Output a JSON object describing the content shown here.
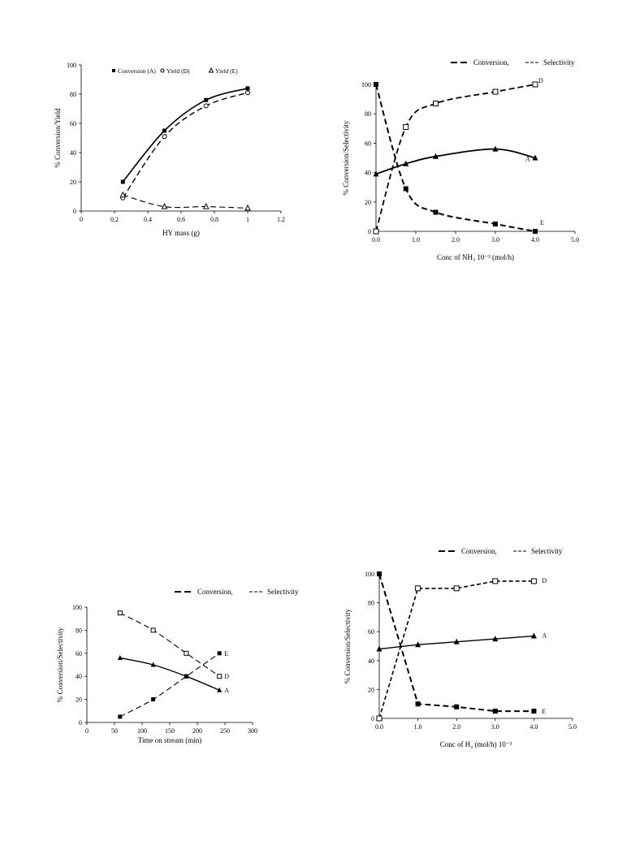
{
  "chart_data": [
    {
      "type": "line",
      "xlabel": "HY mass (g)",
      "ylabel": "% Conversion/Yield",
      "xlim": [
        0,
        1.2
      ],
      "ylim": [
        0,
        100
      ],
      "xticks": [
        "0",
        "0.2",
        "0.4",
        "0.6",
        "0.8",
        "1",
        "1.2"
      ],
      "yticks": [
        "0",
        "20",
        "40",
        "60",
        "80",
        "100"
      ],
      "legend_position": "top-right",
      "series": [
        {
          "name": "Conversion (A)",
          "marker": "filled-square",
          "line": "solid",
          "x": [
            0.25,
            0.5,
            0.75,
            1.0
          ],
          "y": [
            20,
            55,
            76,
            84
          ]
        },
        {
          "name": "Yield (D)",
          "marker": "open-circle",
          "line": "dashed",
          "x": [
            0.25,
            0.5,
            0.75,
            1.0
          ],
          "y": [
            9,
            51,
            72,
            81
          ]
        },
        {
          "name": "Yield (E)",
          "marker": "open-triangle",
          "line": "dashed",
          "x": [
            0.25,
            0.5,
            0.75,
            1.0
          ],
          "y": [
            11,
            3,
            3,
            2
          ]
        }
      ]
    },
    {
      "type": "line",
      "xlabel": "Conc of NH₃ 10⁻³ (mol/h)",
      "ylabel": "% Conversion/Selectivity",
      "xlim": [
        0,
        5
      ],
      "ylim": [
        0,
        100
      ],
      "xticks": [
        "0.0",
        "1.0",
        "2.0",
        "3.0",
        "4.0",
        "5.0"
      ],
      "yticks": [
        "0",
        "20",
        "40",
        "60",
        "80",
        "100"
      ],
      "legend": [
        "Conversion,",
        "Selectivity"
      ],
      "legend_position": "top-right",
      "series": [
        {
          "name": "A",
          "marker": "filled-triangle",
          "line": "solid",
          "x": [
            0,
            0.75,
            1.5,
            3.0,
            4.0
          ],
          "y": [
            39,
            46,
            51,
            56,
            50
          ]
        },
        {
          "name": "D",
          "marker": "open-square",
          "line": "dashed",
          "x": [
            0,
            0.75,
            1.5,
            3.0,
            4.0
          ],
          "y": [
            0,
            71,
            87,
            95,
            100
          ]
        },
        {
          "name": "E",
          "marker": "filled-square",
          "line": "dashed",
          "x": [
            0,
            0.75,
            1.5,
            3.0,
            4.0
          ],
          "y": [
            100,
            29,
            13,
            5,
            0
          ]
        }
      ]
    },
    {
      "type": "line",
      "xlabel": "Time on stream (min)",
      "ylabel": "% Conversion/Selectivity",
      "xlim": [
        0,
        300
      ],
      "ylim": [
        0,
        100
      ],
      "xticks": [
        "0",
        "50",
        "100",
        "150",
        "200",
        "250",
        "300"
      ],
      "yticks": [
        "0",
        "20",
        "40",
        "60",
        "80",
        "100"
      ],
      "legend": [
        "Conversion,",
        "Selectivity"
      ],
      "legend_position": "top-right",
      "series": [
        {
          "name": "A",
          "marker": "filled-triangle",
          "line": "solid",
          "x": [
            60,
            120,
            180,
            240
          ],
          "y": [
            56,
            50,
            40,
            28
          ]
        },
        {
          "name": "D",
          "marker": "open-square",
          "line": "dashed",
          "x": [
            60,
            120,
            180,
            240
          ],
          "y": [
            95,
            80,
            60,
            40
          ]
        },
        {
          "name": "E",
          "marker": "filled-square",
          "line": "dashed",
          "x": [
            60,
            120,
            180,
            240
          ],
          "y": [
            5,
            20,
            40,
            60
          ]
        }
      ]
    },
    {
      "type": "line",
      "xlabel": "Conc of H₂ (mol/h) 10⁻³",
      "ylabel": "% Conversion/Selectivity",
      "xlim": [
        0,
        5
      ],
      "ylim": [
        0,
        100
      ],
      "xticks": [
        "0.0",
        "1.0",
        "2.0",
        "3.0",
        "4.0",
        "5.0"
      ],
      "yticks": [
        "0",
        "20",
        "40",
        "60",
        "80",
        "100"
      ],
      "legend": [
        "Conversion,",
        "Selectivity"
      ],
      "legend_position": "top-right",
      "series": [
        {
          "name": "A",
          "marker": "filled-triangle",
          "line": "solid",
          "x": [
            0,
            1.0,
            2.0,
            3.0,
            4.0
          ],
          "y": [
            48,
            51,
            53,
            55,
            57
          ]
        },
        {
          "name": "D",
          "marker": "open-square",
          "line": "dashed",
          "x": [
            0,
            1.0,
            2.0,
            3.0,
            4.0
          ],
          "y": [
            0,
            90,
            90,
            95,
            95
          ]
        },
        {
          "name": "E",
          "marker": "filled-square",
          "line": "dashed",
          "x": [
            0,
            1.0,
            2.0,
            3.0,
            4.0
          ],
          "y": [
            100,
            10,
            8,
            5,
            5
          ]
        }
      ]
    }
  ]
}
